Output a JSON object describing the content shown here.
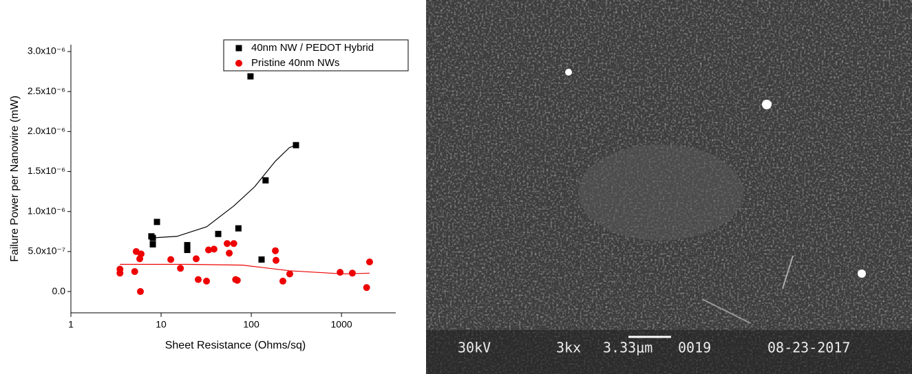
{
  "chart_data": {
    "type": "scatter",
    "xlabel": "Sheet Resistance (Ohms/sq)",
    "ylabel": "Failure Power per Nanowire (mW)",
    "xscale": "log",
    "xlim": [
      1,
      4000
    ],
    "ylim": [
      -2.66e-07,
      3.086e-06
    ],
    "xticks": [
      1,
      10,
      100,
      1000
    ],
    "yticks": [
      {
        "value": 0,
        "label": "0.0"
      },
      {
        "value": 5e-07,
        "label": "5.0x10⁻⁷"
      },
      {
        "value": 1e-06,
        "label": "1.0x10⁻⁶"
      },
      {
        "value": 1.5e-06,
        "label": "1.5x10⁻⁶"
      },
      {
        "value": 2e-06,
        "label": "2.0x10⁻⁶"
      },
      {
        "value": 2.5e-06,
        "label": "2.5x10⁻⁶"
      },
      {
        "value": 3e-06,
        "label": "3.0x10⁻⁶"
      }
    ],
    "legend": "upper right",
    "series": [
      {
        "name": "40nm NW / PEDOT Hybrid",
        "color": "#000000",
        "marker": "square",
        "x": [
          7.8,
          8.1,
          8.1,
          9.0,
          19.5,
          19.5,
          43,
          72,
          98,
          130,
          144,
          313
        ],
        "values": [
          6.9e-07,
          6.7e-07,
          5.9e-07,
          8.7e-07,
          5.8e-07,
          5.2e-07,
          7.2e-07,
          7.9e-07,
          2.69e-06,
          4e-07,
          1.39e-06,
          1.83e-06
        ]
      },
      {
        "name": "Pristine 40nm NWs",
        "color": "#ee0000",
        "marker": "circle",
        "x": [
          3.5,
          3.5,
          5.1,
          5.3,
          5.8,
          6.0,
          5.9,
          12.8,
          16.4,
          24.5,
          25.8,
          31.9,
          33.6,
          38.6,
          54,
          57,
          64,
          67,
          70,
          185,
          188,
          224,
          267,
          966,
          1320,
          1900,
          2050
        ],
        "values": [
          2.8e-07,
          2.3e-07,
          2.5e-07,
          5e-07,
          4.1e-07,
          4.7e-07,
          0,
          4e-07,
          2.9e-07,
          4.1e-07,
          1.5e-07,
          1.3e-07,
          5.2e-07,
          5.3e-07,
          6e-07,
          4.8e-07,
          6e-07,
          1.5e-07,
          1.4e-07,
          5.1e-07,
          3.9e-07,
          1.3e-07,
          2.2e-07,
          2.4e-07,
          2.3e-07,
          5e-08,
          3.7e-07
        ]
      }
    ],
    "fits": [
      {
        "color": "#000000",
        "x": [
          7.8,
          15,
          32,
          64,
          109,
          185,
          265,
          313
        ],
        "values": [
          6.7e-07,
          6.9e-07,
          8.1e-07,
          1.07e-06,
          1.31e-06,
          1.63e-06,
          1.8e-06,
          1.83e-06
        ]
      },
      {
        "color": "#ee0000",
        "x": [
          3.5,
          20,
          80,
          265,
          1060,
          2050
        ],
        "values": [
          3.4e-07,
          3.4e-07,
          3.3e-07,
          2.6e-07,
          2.2e-07,
          2.3e-07
        ]
      }
    ]
  },
  "image": {
    "labels": [
      "30kV",
      "3kx",
      "3.33μm",
      "0019",
      "08-23-2017"
    ]
  }
}
